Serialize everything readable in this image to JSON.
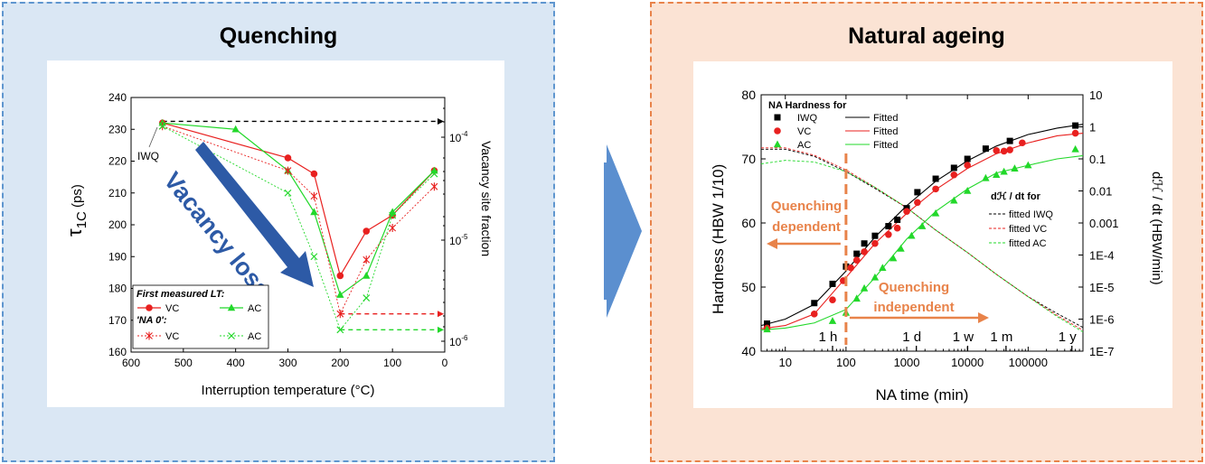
{
  "figure": {
    "left_title": "Quenching",
    "right_title": "Natural ageing",
    "colors": {
      "left_bg": "#dae7f4",
      "left_border": "#5f96cf",
      "right_bg": "#fbe3d4",
      "right_border": "#e8834a",
      "arrow": "#5b8fcf",
      "series_vc": "#e8201f",
      "series_ac": "#22d82a",
      "series_iwq": "#000000",
      "vacancy_arrow": "#2d5aa6",
      "orange": "#e8834a"
    }
  },
  "chart_data": [
    {
      "type": "line",
      "ylabel": "τ1C (ps)",
      "y2label": "Vacancy site fraction",
      "xlabel": "Interruption temperature (°C)",
      "xlim": [
        600,
        0
      ],
      "ylim": [
        160,
        240
      ],
      "x_ticks": [
        600,
        500,
        400,
        300,
        200,
        100,
        0
      ],
      "y_ticks": [
        160,
        170,
        180,
        190,
        200,
        210,
        220,
        230,
        240
      ],
      "y2_ticks": [
        "10^-4",
        "10^-5",
        "10^-6"
      ],
      "annotations": {
        "iwq": "IWQ",
        "vacancy_loss": "Vacancy loss"
      },
      "legend": {
        "header1": "First measured LT:",
        "header2": "'NA 0':",
        "vc": "VC",
        "ac": "AC",
        "vc2": "VC",
        "ac2": "AC"
      },
      "series": [
        {
          "name": "VC",
          "group": "First measured LT",
          "marker": "circle",
          "color": "#e8201f",
          "x": [
            540,
            300,
            250,
            200,
            150,
            100,
            20
          ],
          "y": [
            232,
            221,
            216,
            184,
            198,
            203,
            217
          ]
        },
        {
          "name": "AC",
          "group": "First measured LT",
          "marker": "triangle",
          "color": "#22d82a",
          "x": [
            540,
            400,
            300,
            250,
            200,
            150,
            100,
            20
          ],
          "y": [
            232,
            230,
            217,
            204,
            178,
            184,
            204,
            217
          ]
        },
        {
          "name": "VC",
          "group": "NA 0",
          "marker": "star",
          "color": "#e8201f",
          "x": [
            540,
            300,
            250,
            200,
            150,
            100,
            20
          ],
          "y": [
            231,
            217,
            209,
            172,
            189,
            199,
            212
          ]
        },
        {
          "name": "AC",
          "group": "NA 0",
          "marker": "x",
          "color": "#22d82a",
          "x": [
            540,
            300,
            250,
            200,
            150,
            100,
            20
          ],
          "y": [
            231,
            210,
            190,
            167,
            177,
            203,
            216
          ]
        }
      ],
      "reference_lines": [
        {
          "color": "#000000",
          "y": 232.5,
          "x_from": 540
        },
        {
          "color": "#e8201f",
          "y": 172,
          "x_from": 200
        },
        {
          "color": "#22d82a",
          "y": 167,
          "x_from": 200
        }
      ]
    },
    {
      "type": "scatter",
      "xlabel": "NA time (min)",
      "ylabel": "Hardness (HBW 1/10)",
      "y2label": "dℋ / dt (HBW/min)",
      "x_scale": "log",
      "y2_scale": "log",
      "xlim": [
        4,
        800000
      ],
      "ylim": [
        40,
        80
      ],
      "y2lim": [
        1e-07,
        10
      ],
      "x_ticks": [
        "10",
        "100",
        "1000",
        "10000",
        "100000"
      ],
      "y_ticks": [
        40,
        50,
        60,
        70,
        80
      ],
      "y2_ticks": [
        "10",
        "1",
        "0.1",
        "0.01",
        "0.001",
        "1E-4",
        "1E-5",
        "1E-6",
        "1E-7"
      ],
      "time_markers": [
        {
          "label": "1 h",
          "x": 60
        },
        {
          "label": "1 d",
          "x": 1440
        },
        {
          "label": "1 w",
          "x": 10080
        },
        {
          "label": "1 m",
          "x": 43200
        },
        {
          "label": "1 y",
          "x": 525600
        }
      ],
      "legend": {
        "title": "NA Hardness for",
        "iwq": "IWQ",
        "vc": "VC",
        "ac": "AC",
        "fitted": "Fitted",
        "rate_title": "dℋ / dt for",
        "rate_iwq": "fitted IWQ",
        "rate_vc": "fitted VC",
        "rate_ac": "fitted AC"
      },
      "annotations": {
        "dependent": [
          "Quenching",
          "dependent"
        ],
        "independent": [
          "Quenching",
          "independent"
        ],
        "boundary_x": 100
      },
      "series": [
        {
          "name": "IWQ",
          "marker": "square",
          "color": "#000000",
          "x": [
            5,
            30,
            60,
            100,
            150,
            200,
            300,
            500,
            700,
            1000,
            1500,
            3000,
            6000,
            10000,
            20000,
            50000,
            600000
          ],
          "y": [
            44.3,
            47.5,
            50.5,
            53.2,
            55.2,
            56.8,
            58.0,
            59.5,
            60.5,
            62.3,
            64.8,
            66.9,
            68.6,
            70.0,
            71.6,
            72.8,
            75.2
          ]
        },
        {
          "name": "VC",
          "marker": "circle",
          "color": "#e8201f",
          "x": [
            5,
            30,
            60,
            90,
            120,
            150,
            200,
            300,
            500,
            700,
            1000,
            1500,
            3000,
            6000,
            10000,
            30000,
            40000,
            50000,
            80000,
            600000
          ],
          "y": [
            43.6,
            45.8,
            48.0,
            51.0,
            53.0,
            54.2,
            55.5,
            56.8,
            58.2,
            59.2,
            61.8,
            63.2,
            65.3,
            67.5,
            69.0,
            71.3,
            71.2,
            71.4,
            72.5,
            74.0
          ]
        },
        {
          "name": "AC",
          "marker": "triangle",
          "color": "#22d82a",
          "x": [
            5,
            60,
            100,
            150,
            200,
            300,
            400,
            600,
            800,
            1200,
            1800,
            3000,
            6000,
            10000,
            20000,
            30000,
            40000,
            60000,
            100000,
            600000
          ],
          "y": [
            43.4,
            44.7,
            46.0,
            48.2,
            49.8,
            51.5,
            53.0,
            54.5,
            56.0,
            58.0,
            59.5,
            61.5,
            63.5,
            65.0,
            67.0,
            67.5,
            68.0,
            68.5,
            69.0,
            71.5
          ]
        }
      ],
      "fits": [
        {
          "name": "Fitted",
          "for": "IWQ",
          "color": "#000000",
          "x": [
            4,
            10,
            30,
            100,
            300,
            1000,
            3000,
            10000,
            30000,
            100000,
            300000,
            800000
          ],
          "y": [
            44.0,
            45.0,
            47.3,
            52.5,
            57.8,
            62.7,
            66.5,
            69.7,
            72.0,
            73.8,
            74.8,
            75.4
          ]
        },
        {
          "name": "Fitted",
          "for": "VC",
          "color": "#e8201f",
          "x": [
            4,
            10,
            30,
            100,
            300,
            1000,
            3000,
            10000,
            30000,
            100000,
            300000,
            800000
          ],
          "y": [
            43.5,
            44.0,
            45.8,
            51.5,
            56.8,
            61.5,
            65.2,
            68.5,
            70.8,
            72.5,
            73.6,
            74.0
          ]
        },
        {
          "name": "Fitted",
          "for": "AC",
          "color": "#22d82a",
          "x": [
            4,
            10,
            30,
            100,
            300,
            1000,
            3000,
            10000,
            30000,
            100000,
            300000,
            800000
          ],
          "y": [
            43.3,
            43.6,
            44.4,
            46.5,
            51.5,
            57.5,
            61.8,
            65.3,
            67.8,
            69.0,
            70.0,
            70.5
          ]
        }
      ],
      "rate_fits": [
        {
          "name": "fitted IWQ",
          "color": "#000000",
          "x": [
            4,
            10,
            30,
            100,
            300,
            1000,
            3000,
            10000,
            30000,
            100000,
            300000,
            800000
          ],
          "y": [
            0.2,
            0.2,
            0.12,
            0.04,
            0.012,
            0.003,
            0.0006,
            0.00012,
            2.5e-05,
            5e-06,
            1.5e-06,
            5.5e-07
          ]
        },
        {
          "name": "fitted VC",
          "color": "#e8201f",
          "x": [
            4,
            10,
            30,
            100,
            300,
            1000,
            3000,
            10000,
            30000,
            100000,
            300000,
            800000
          ],
          "y": [
            0.22,
            0.22,
            0.13,
            0.045,
            0.013,
            0.003,
            0.0006,
            0.00012,
            2.5e-05,
            5e-06,
            1.3e-06,
            4.5e-07
          ]
        },
        {
          "name": "fitted AC",
          "color": "#22d82a",
          "x": [
            4,
            10,
            30,
            100,
            300,
            1000,
            3000,
            10000,
            30000,
            100000,
            300000,
            800000
          ],
          "y": [
            0.07,
            0.09,
            0.08,
            0.04,
            0.013,
            0.003,
            0.0006,
            0.00012,
            2.5e-05,
            5e-06,
            1.2e-06,
            4e-07
          ]
        }
      ]
    }
  ]
}
